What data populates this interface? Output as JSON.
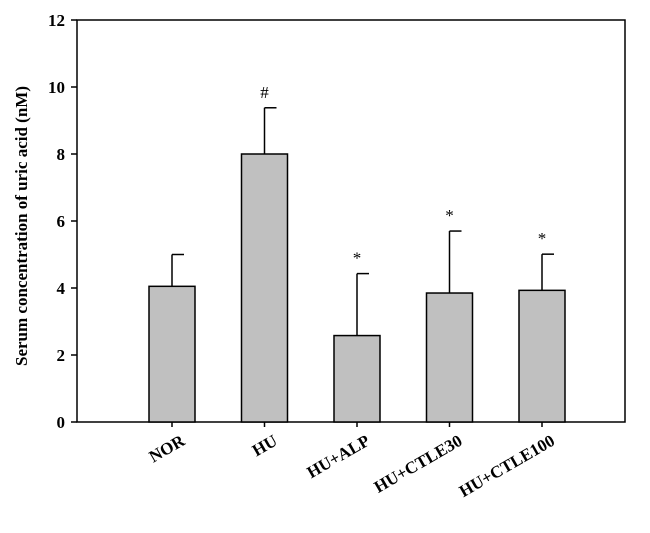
{
  "chart_data": {
    "type": "bar",
    "title": "",
    "xlabel": "",
    "ylabel": "Serum concentration of uric acid (nM)",
    "ylim": [
      0,
      12
    ],
    "yticks": [
      0,
      2,
      4,
      6,
      8,
      10,
      12
    ],
    "grid": false,
    "categories": [
      "NOR",
      "HU",
      "HU+ALP",
      "HU+CTLE30",
      "HU+CTLE100"
    ],
    "values": [
      4.05,
      8.0,
      2.58,
      3.85,
      3.93
    ],
    "errors": [
      0.95,
      1.38,
      1.85,
      1.85,
      1.08
    ],
    "significance": [
      "",
      "#",
      "*",
      "*",
      "*"
    ],
    "colors": {
      "bar_fill": "#c0c0c0",
      "bar_stroke": "#000000"
    }
  }
}
